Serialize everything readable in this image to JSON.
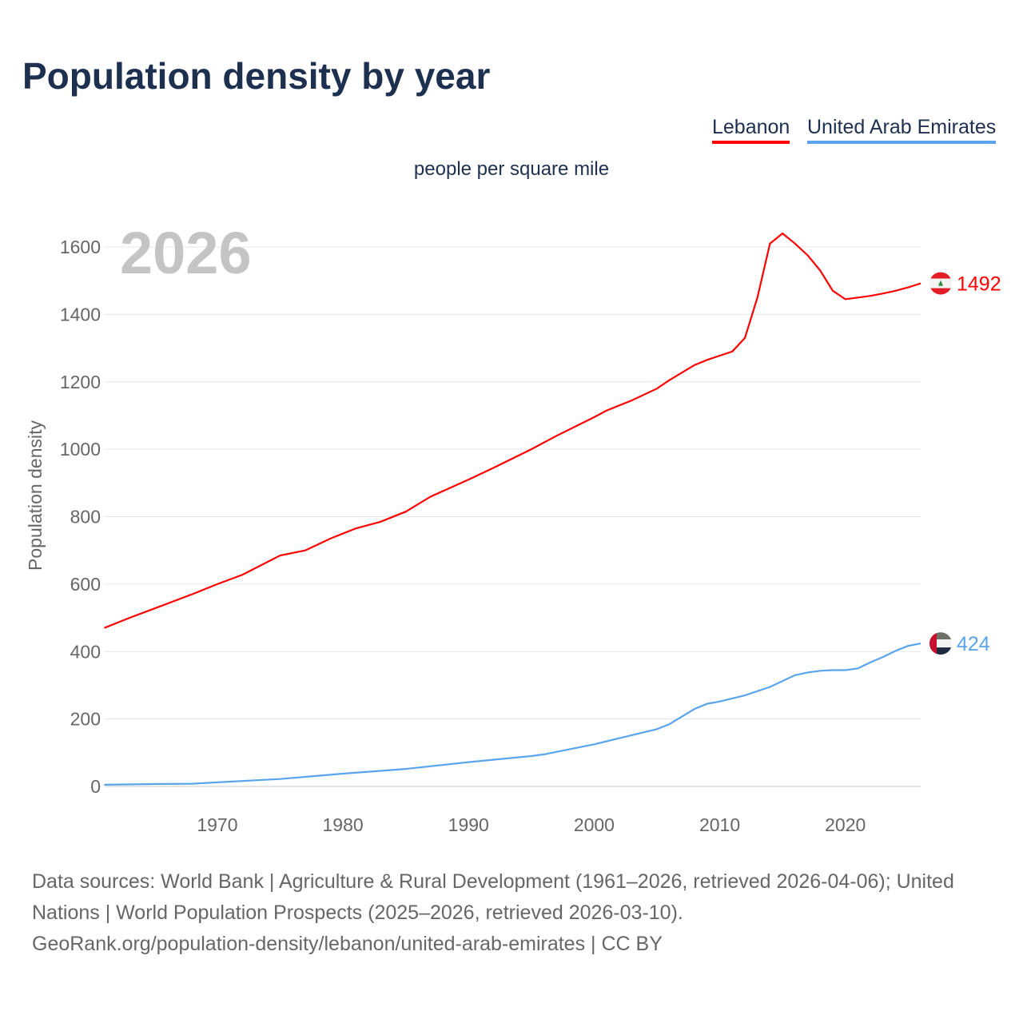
{
  "title": "Population density by year",
  "subtitle": "people per square mile",
  "footer": {
    "sources": "Data sources: World Bank | Agriculture & Rural Development (1961–2026, retrieved 2026-04-06); United Nations | World Population Prospects (2025–2026, retrieved 2026-03-10).",
    "link": "GeoRank.org/population-density/lebanon/united-arab-emirates | CC BY"
  },
  "chart_data": {
    "type": "line",
    "title": "Population density by year",
    "ylabel": "Population density",
    "xlabel": "",
    "year_label": "2026",
    "xlim": [
      1961,
      2026
    ],
    "ylim": [
      0,
      1650
    ],
    "xticks": [
      1970,
      1980,
      1990,
      2000,
      2010,
      2020
    ],
    "yticks": [
      0,
      200,
      400,
      600,
      800,
      1000,
      1200,
      1400,
      1600
    ],
    "grid": true,
    "legend_position": "top-right",
    "series": [
      {
        "name": "Lebanon",
        "color": "#ff0000",
        "end_label": "1492",
        "flag": "lebanon-flag",
        "points": [
          [
            1961,
            470
          ],
          [
            1963,
            500
          ],
          [
            1965,
            528
          ],
          [
            1968,
            570
          ],
          [
            1970,
            600
          ],
          [
            1972,
            628
          ],
          [
            1975,
            685
          ],
          [
            1977,
            700
          ],
          [
            1979,
            735
          ],
          [
            1981,
            765
          ],
          [
            1983,
            785
          ],
          [
            1985,
            815
          ],
          [
            1987,
            860
          ],
          [
            1990,
            910
          ],
          [
            1992,
            945
          ],
          [
            1995,
            1000
          ],
          [
            1997,
            1040
          ],
          [
            2000,
            1095
          ],
          [
            2001,
            1115
          ],
          [
            2003,
            1145
          ],
          [
            2005,
            1180
          ],
          [
            2006,
            1205
          ],
          [
            2008,
            1250
          ],
          [
            2009,
            1265
          ],
          [
            2011,
            1290
          ],
          [
            2012,
            1330
          ],
          [
            2013,
            1450
          ],
          [
            2014,
            1610
          ],
          [
            2015,
            1640
          ],
          [
            2016,
            1610
          ],
          [
            2017,
            1575
          ],
          [
            2018,
            1530
          ],
          [
            2019,
            1470
          ],
          [
            2020,
            1445
          ],
          [
            2021,
            1450
          ],
          [
            2022,
            1455
          ],
          [
            2023,
            1462
          ],
          [
            2024,
            1470
          ],
          [
            2025,
            1480
          ],
          [
            2026,
            1492
          ]
        ]
      },
      {
        "name": "United Arab Emirates",
        "color": "#5aa4ec",
        "end_label": "424",
        "flag": "uae-flag",
        "points": [
          [
            1961,
            5
          ],
          [
            1965,
            7
          ],
          [
            1968,
            8
          ],
          [
            1970,
            12
          ],
          [
            1975,
            22
          ],
          [
            1980,
            38
          ],
          [
            1985,
            52
          ],
          [
            1990,
            72
          ],
          [
            1995,
            90
          ],
          [
            1996,
            95
          ],
          [
            2000,
            125
          ],
          [
            2005,
            170
          ],
          [
            2006,
            185
          ],
          [
            2008,
            230
          ],
          [
            2009,
            245
          ],
          [
            2010,
            252
          ],
          [
            2012,
            270
          ],
          [
            2014,
            295
          ],
          [
            2016,
            330
          ],
          [
            2017,
            338
          ],
          [
            2018,
            343
          ],
          [
            2019,
            345
          ],
          [
            2020,
            345
          ],
          [
            2021,
            350
          ],
          [
            2022,
            368
          ],
          [
            2023,
            384
          ],
          [
            2024,
            402
          ],
          [
            2025,
            417
          ],
          [
            2026,
            424
          ]
        ]
      }
    ]
  }
}
